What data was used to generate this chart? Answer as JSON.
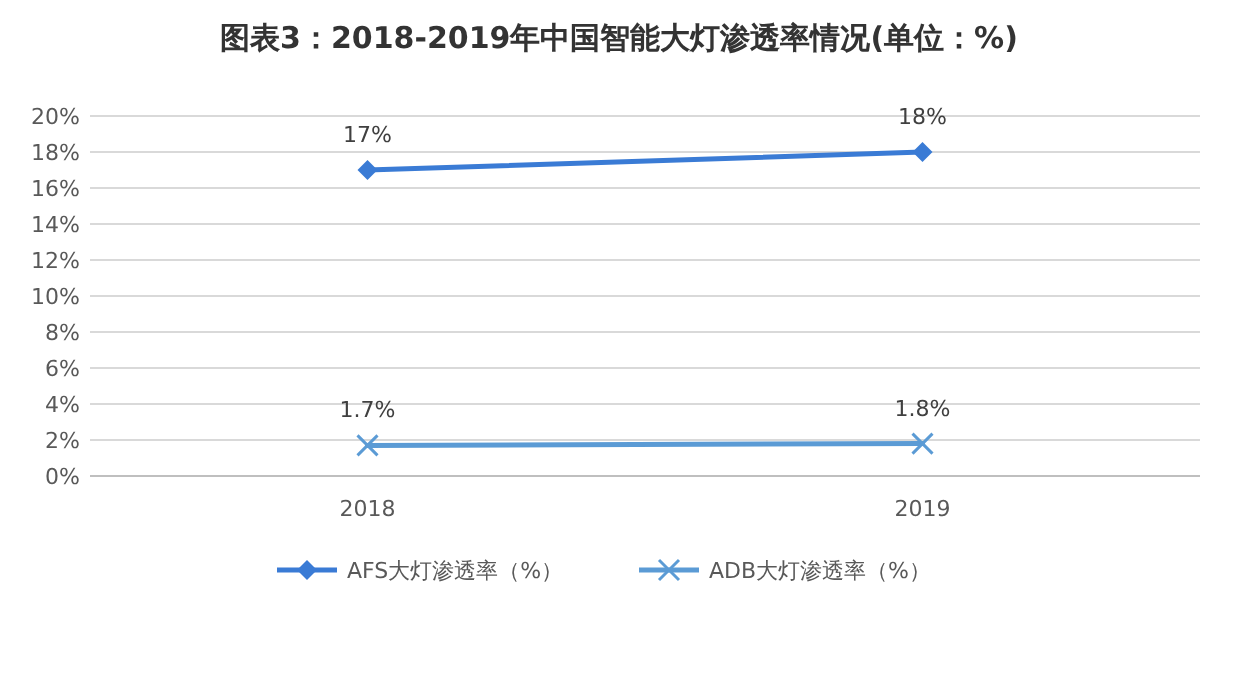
{
  "chart_data": {
    "type": "line",
    "title": "图表3：2018-2019年中国智能大灯渗透率情况(单位：%)",
    "categories": [
      "2018",
      "2019"
    ],
    "series": [
      {
        "name": "AFS大灯渗透率（%）",
        "color": "#3a7bd5",
        "values": [
          17,
          18
        ],
        "value_labels": [
          "17%",
          "18%"
        ],
        "marker": "diamond"
      },
      {
        "name": "ADB大灯渗透率（%）",
        "color": "#5b9bd5",
        "values": [
          1.7,
          1.8
        ],
        "value_labels": [
          "1.7%",
          "1.8%"
        ],
        "marker": "cross"
      }
    ],
    "ylim": [
      0,
      20
    ],
    "yticks": [
      {
        "value": 0,
        "label": "0%"
      },
      {
        "value": 2,
        "label": "2%"
      },
      {
        "value": 4,
        "label": "4%"
      },
      {
        "value": 6,
        "label": "6%"
      },
      {
        "value": 8,
        "label": "8%"
      },
      {
        "value": 10,
        "label": "10%"
      },
      {
        "value": 12,
        "label": "12%"
      },
      {
        "value": 14,
        "label": "14%"
      },
      {
        "value": 16,
        "label": "16%"
      },
      {
        "value": 18,
        "label": "18%"
      },
      {
        "value": 20,
        "label": "20%"
      }
    ],
    "grid": "y",
    "legend": "bottom",
    "line_style": "solid"
  }
}
